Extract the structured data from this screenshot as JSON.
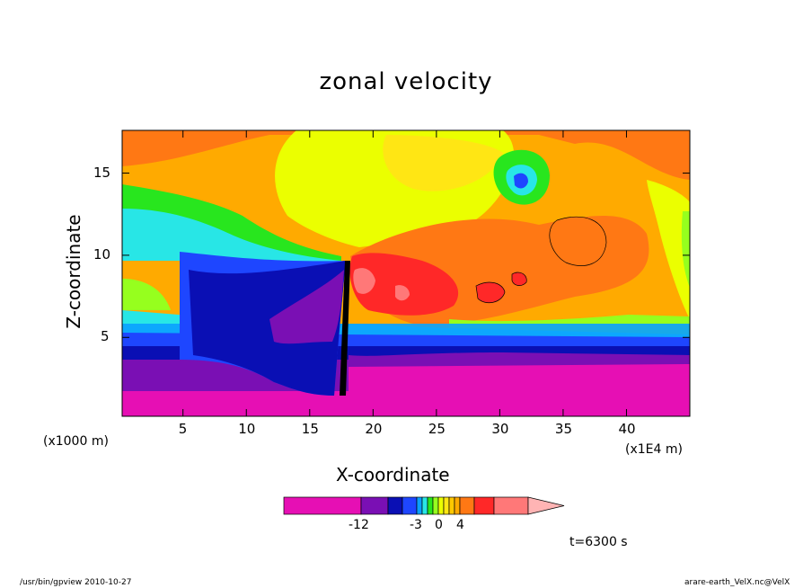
{
  "chart_data": {
    "type": "heatmap",
    "title": "zonal velocity",
    "xlabel": "X-coordinate",
    "ylabel": "Z-coordinate",
    "x_unit": "(x1E4 m)",
    "y_unit": "(x1000 m)",
    "xlim": [
      0.2,
      45
    ],
    "ylim": [
      0.2,
      17.6
    ],
    "x_ticks": [
      5,
      10,
      15,
      20,
      25,
      30,
      35,
      40
    ],
    "y_ticks": [
      5,
      10,
      15
    ],
    "colorbar": {
      "levels": [
        -16,
        -12,
        -9,
        -6,
        -4,
        -3,
        -2,
        -1,
        0,
        1,
        2,
        3,
        4,
        6,
        8
      ],
      "tick_labels": [
        "-12",
        "-3",
        "0",
        "4"
      ],
      "colors": [
        "#e60fb4",
        "#7a0fb4",
        "#0a0fb4",
        "#1e46ff",
        "#0aa0ff",
        "#28e6e6",
        "#28e61e",
        "#96ff1e",
        "#ebff00",
        "#ffe614",
        "#ffc800",
        "#ffaa00",
        "#ff7814",
        "#ff2828",
        "#ff7878",
        "#ffb4b4"
      ]
    },
    "time_label": "t=6300 s"
  },
  "footer": {
    "left": "/usr/bin/gpview  2010-10-27",
    "right": "arare-earth_VelX.nc@VelX"
  }
}
